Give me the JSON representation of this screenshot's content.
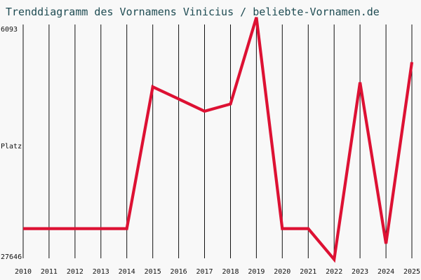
{
  "page": {
    "title": "Trenddiagramm des Vornamens Vinicius / beliebte-Vornamen.de"
  },
  "chart_data": {
    "type": "line",
    "title": "Trenddiagramm des Vornamens Vinicius / beliebte-Vornamen.de",
    "xlabel": "",
    "ylabel": "Platz",
    "x": [
      2010,
      2011,
      2012,
      2013,
      2014,
      2015,
      2016,
      2017,
      2018,
      2019,
      2020,
      2021,
      2022,
      2023,
      2024,
      2025
    ],
    "y_ticks": [
      "6093",
      "27646"
    ],
    "y_range": [
      6093,
      27646
    ],
    "y_reversed": true,
    "series": [
      {
        "values": [
          24940,
          24940,
          24940,
          24940,
          24940,
          12030,
          13130,
          14250,
          13590,
          5700,
          24940,
          24940,
          27750,
          11620,
          26310,
          9780
        ],
        "color": "#dd1133"
      }
    ],
    "grid": "vertical"
  }
}
